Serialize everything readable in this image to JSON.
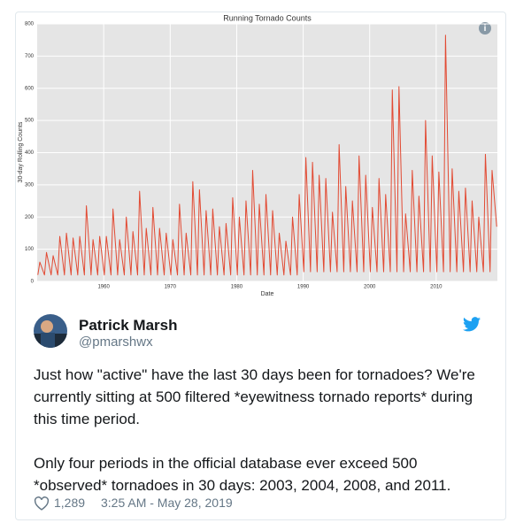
{
  "tweet": {
    "author": "Patrick Marsh",
    "handle": "@pmarshwx",
    "paragraphs": [
      "Just how \"active\" have the last 30 days been for tornadoes? We're currently sitting at 500 filtered *eyewitness tornado reports* during this time period.",
      "Only four periods in the official database ever exceed 500 *observed* tornadoes in 30 days: 2003, 2004, 2008, and 2011."
    ],
    "likes": "1,289",
    "timestamp": "3:25 AM - May 28, 2019"
  },
  "chart_data": {
    "type": "line",
    "title": "Running Tornado Counts",
    "x_label": "Date",
    "y_label": "30-day Rolling Counts",
    "xlim": [
      1950,
      2019.2
    ],
    "ylim": [
      0,
      800
    ],
    "xticks": [
      1960,
      1970,
      1980,
      1990,
      2000,
      2010
    ],
    "yticks": [
      0,
      100,
      200,
      300,
      400,
      500,
      600,
      700,
      800
    ],
    "grid": true,
    "series": [
      {
        "name": "30-day Rolling Counts",
        "color": "#e24a33",
        "x": [
          1950.1,
          1950.4,
          1951.1,
          1951.4,
          1952.1,
          1952.4,
          1953.1,
          1953.4,
          1954.1,
          1954.4,
          1955.1,
          1955.4,
          1956.1,
          1956.4,
          1957.1,
          1957.4,
          1958.1,
          1958.4,
          1959.1,
          1959.4,
          1960.1,
          1960.4,
          1961.1,
          1961.4,
          1962.1,
          1962.4,
          1963.1,
          1963.4,
          1964.1,
          1964.4,
          1965.1,
          1965.4,
          1966.1,
          1966.4,
          1967.1,
          1967.4,
          1968.1,
          1968.4,
          1969.1,
          1969.4,
          1970.1,
          1970.4,
          1971.1,
          1971.4,
          1972.1,
          1972.4,
          1973.1,
          1973.4,
          1974.1,
          1974.4,
          1975.1,
          1975.4,
          1976.1,
          1976.4,
          1977.1,
          1977.4,
          1978.1,
          1978.4,
          1979.1,
          1979.4,
          1980.1,
          1980.4,
          1981.1,
          1981.4,
          1982.1,
          1982.4,
          1983.1,
          1983.4,
          1984.1,
          1984.4,
          1985.1,
          1985.4,
          1986.1,
          1986.4,
          1987.1,
          1987.4,
          1988.1,
          1988.4,
          1989.1,
          1989.4,
          1990.1,
          1990.4,
          1991.1,
          1991.4,
          1992.1,
          1992.4,
          1993.1,
          1993.4,
          1994.1,
          1994.4,
          1995.1,
          1995.4,
          1996.1,
          1996.4,
          1997.1,
          1997.4,
          1998.1,
          1998.4,
          1999.1,
          1999.4,
          2000.1,
          2000.4,
          2001.1,
          2001.4,
          2002.1,
          2002.4,
          2003.1,
          2003.4,
          2004.1,
          2004.4,
          2005.1,
          2005.4,
          2006.1,
          2006.4,
          2007.1,
          2007.4,
          2008.1,
          2008.4,
          2009.1,
          2009.4,
          2010.1,
          2010.4,
          2011.1,
          2011.4,
          2012.1,
          2012.4,
          2013.1,
          2013.4,
          2014.1,
          2014.4,
          2015.1,
          2015.4,
          2016.1,
          2016.4,
          2017.1,
          2017.4,
          2018.1,
          2018.4,
          2019.1
        ],
        "values": [
          20,
          60,
          20,
          90,
          20,
          80,
          20,
          140,
          20,
          150,
          20,
          135,
          20,
          140,
          20,
          235,
          20,
          130,
          20,
          140,
          20,
          140,
          20,
          225,
          20,
          130,
          20,
          200,
          20,
          155,
          20,
          280,
          20,
          165,
          20,
          230,
          20,
          165,
          20,
          150,
          20,
          130,
          20,
          240,
          20,
          150,
          20,
          310,
          20,
          285,
          20,
          220,
          20,
          225,
          20,
          170,
          20,
          180,
          20,
          260,
          20,
          200,
          20,
          250,
          20,
          345,
          20,
          240,
          20,
          270,
          20,
          220,
          20,
          150,
          20,
          125,
          20,
          200,
          20,
          270,
          30,
          385,
          30,
          370,
          30,
          330,
          30,
          320,
          30,
          215,
          30,
          425,
          30,
          295,
          30,
          250,
          30,
          390,
          30,
          330,
          30,
          230,
          30,
          320,
          30,
          270,
          30,
          595,
          30,
          605,
          30,
          210,
          30,
          345,
          30,
          265,
          30,
          500,
          30,
          390,
          30,
          340,
          30,
          765,
          30,
          350,
          30,
          280,
          30,
          290,
          30,
          250,
          30,
          200,
          30,
          395,
          30,
          345,
          170
        ]
      }
    ]
  }
}
